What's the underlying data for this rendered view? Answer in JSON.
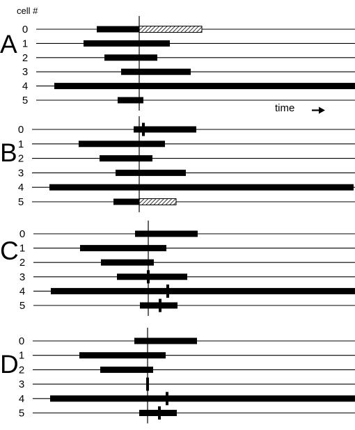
{
  "header": {
    "cell_label": "cell #",
    "time_label": "time"
  },
  "colors": {
    "bar": "#000000",
    "line": "#000000",
    "hatch": "#000000",
    "background": "#ffffff"
  },
  "panels": [
    {
      "id": "A",
      "label": "A",
      "marker_time": 200,
      "cells": [
        {
          "label": "0",
          "bars": [
            {
              "start": 139,
              "end": 200,
              "style": "solid"
            },
            {
              "start": 200,
              "end": 290,
              "style": "hatched"
            }
          ],
          "ticks": []
        },
        {
          "label": "1",
          "bars": [
            {
              "start": 120,
              "end": 244,
              "style": "solid"
            }
          ],
          "ticks": []
        },
        {
          "label": "2",
          "bars": [
            {
              "start": 150,
              "end": 226,
              "style": "solid"
            }
          ],
          "ticks": []
        },
        {
          "label": "3",
          "bars": [
            {
              "start": 174,
              "end": 274,
              "style": "solid"
            }
          ],
          "ticks": []
        },
        {
          "label": "4",
          "bars": [
            {
              "start": 78,
              "end": 510,
              "style": "solid"
            }
          ],
          "ticks": []
        },
        {
          "label": "5",
          "bars": [
            {
              "start": 169,
              "end": 206,
              "style": "solid"
            }
          ],
          "ticks": []
        }
      ]
    },
    {
      "id": "B",
      "label": "B",
      "marker_time": 200,
      "cells": [
        {
          "label": "0",
          "bars": [
            {
              "start": 192,
              "end": 282,
              "style": "solid"
            }
          ],
          "ticks": [
            206
          ]
        },
        {
          "label": "1",
          "bars": [
            {
              "start": 113,
              "end": 237,
              "style": "solid"
            }
          ],
          "ticks": []
        },
        {
          "label": "2",
          "bars": [
            {
              "start": 143,
              "end": 219,
              "style": "solid"
            }
          ],
          "ticks": []
        },
        {
          "label": "3",
          "bars": [
            {
              "start": 166,
              "end": 267,
              "style": "solid"
            }
          ],
          "ticks": []
        },
        {
          "label": "4",
          "bars": [
            {
              "start": 71,
              "end": 508,
              "style": "solid"
            }
          ],
          "ticks": []
        },
        {
          "label": "5",
          "bars": [
            {
              "start": 163,
              "end": 200,
              "style": "solid"
            },
            {
              "start": 200,
              "end": 253,
              "style": "hatched"
            }
          ],
          "ticks": []
        }
      ]
    },
    {
      "id": "C",
      "label": "C",
      "marker_time": 213,
      "cells": [
        {
          "label": "0",
          "bars": [
            {
              "start": 194,
              "end": 284,
              "style": "solid"
            }
          ],
          "ticks": []
        },
        {
          "label": "1",
          "bars": [
            {
              "start": 115,
              "end": 239,
              "style": "solid"
            }
          ],
          "ticks": []
        },
        {
          "label": "2",
          "bars": [
            {
              "start": 145,
              "end": 221,
              "style": "solid"
            }
          ],
          "ticks": []
        },
        {
          "label": "3",
          "bars": [
            {
              "start": 168,
              "end": 269,
              "style": "solid"
            }
          ],
          "ticks": [
            213
          ]
        },
        {
          "label": "4",
          "bars": [
            {
              "start": 73,
              "end": 510,
              "style": "solid"
            }
          ],
          "ticks": [
            241
          ]
        },
        {
          "label": "5",
          "bars": [
            {
              "start": 201,
              "end": 255,
              "style": "solid"
            }
          ],
          "ticks": [
            230
          ]
        }
      ]
    },
    {
      "id": "D",
      "label": "D",
      "marker_time": 212,
      "cells": [
        {
          "label": "0",
          "bars": [
            {
              "start": 193,
              "end": 283,
              "style": "solid"
            }
          ],
          "ticks": []
        },
        {
          "label": "1",
          "bars": [
            {
              "start": 114,
              "end": 238,
              "style": "solid"
            }
          ],
          "ticks": []
        },
        {
          "label": "2",
          "bars": [
            {
              "start": 144,
              "end": 220,
              "style": "solid"
            }
          ],
          "ticks": []
        },
        {
          "label": "3",
          "bars": [],
          "ticks": [
            212
          ]
        },
        {
          "label": "4",
          "bars": [
            {
              "start": 72,
              "end": 510,
              "style": "solid"
            }
          ],
          "ticks": [
            240
          ]
        },
        {
          "label": "5",
          "bars": [
            {
              "start": 200,
              "end": 254,
              "style": "solid"
            }
          ],
          "ticks": [
            229
          ]
        }
      ]
    }
  ]
}
